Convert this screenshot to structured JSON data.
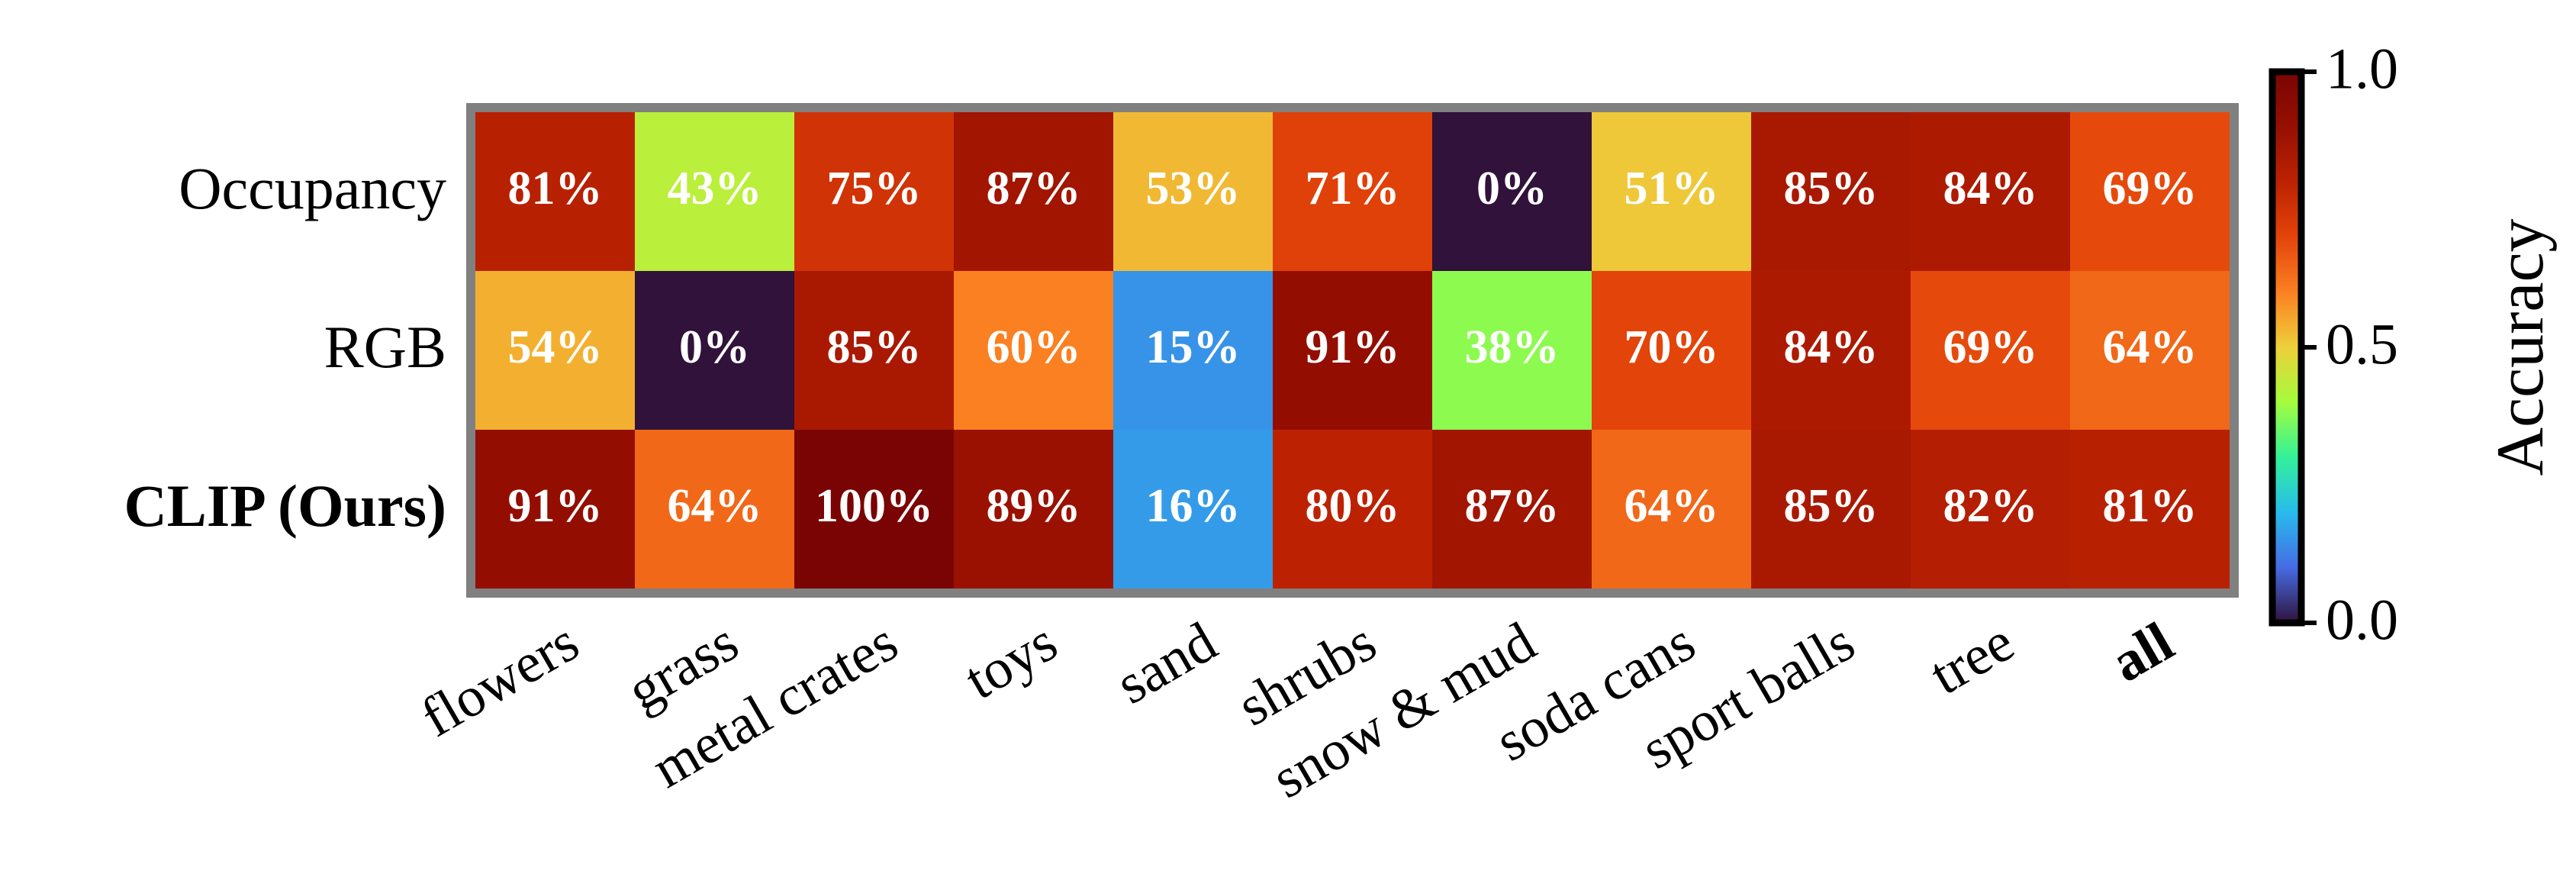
{
  "chart_data": {
    "type": "heatmap",
    "rows": [
      "Occupancy",
      "RGB",
      "CLIP (Ours)"
    ],
    "bold_rows": [
      "CLIP (Ours)"
    ],
    "columns": [
      "flowers",
      "grass",
      "metal crates",
      "toys",
      "sand",
      "shrubs",
      "snow & mud",
      "soda cans",
      "sport balls",
      "tree",
      "all"
    ],
    "bold_columns": [
      "all"
    ],
    "values": [
      [
        0.81,
        0.43,
        0.75,
        0.87,
        0.53,
        0.71,
        0.0,
        0.51,
        0.85,
        0.84,
        0.69
      ],
      [
        0.54,
        0.0,
        0.85,
        0.6,
        0.15,
        0.91,
        0.38,
        0.7,
        0.84,
        0.69,
        0.64
      ],
      [
        0.91,
        0.64,
        1.0,
        0.89,
        0.16,
        0.8,
        0.87,
        0.64,
        0.85,
        0.82,
        0.81
      ]
    ],
    "cell_labels": [
      [
        "81%",
        "43%",
        "75%",
        "87%",
        "53%",
        "71%",
        "0%",
        "51%",
        "85%",
        "84%",
        "69%"
      ],
      [
        "54%",
        "0%",
        "85%",
        "60%",
        "15%",
        "91%",
        "38%",
        "70%",
        "84%",
        "69%",
        "64%"
      ],
      [
        "91%",
        "64%",
        "100%",
        "89%",
        "16%",
        "80%",
        "87%",
        "64%",
        "85%",
        "82%",
        "81%"
      ]
    ],
    "colormap": "turbo",
    "clim": [
      0.0,
      1.0
    ],
    "colorbar": {
      "label": "Accuracy",
      "ticks": [
        0.0,
        0.5,
        1.0
      ],
      "tick_labels": [
        "0.0",
        "0.5",
        "1.0"
      ]
    },
    "frame_color": "#808080"
  }
}
